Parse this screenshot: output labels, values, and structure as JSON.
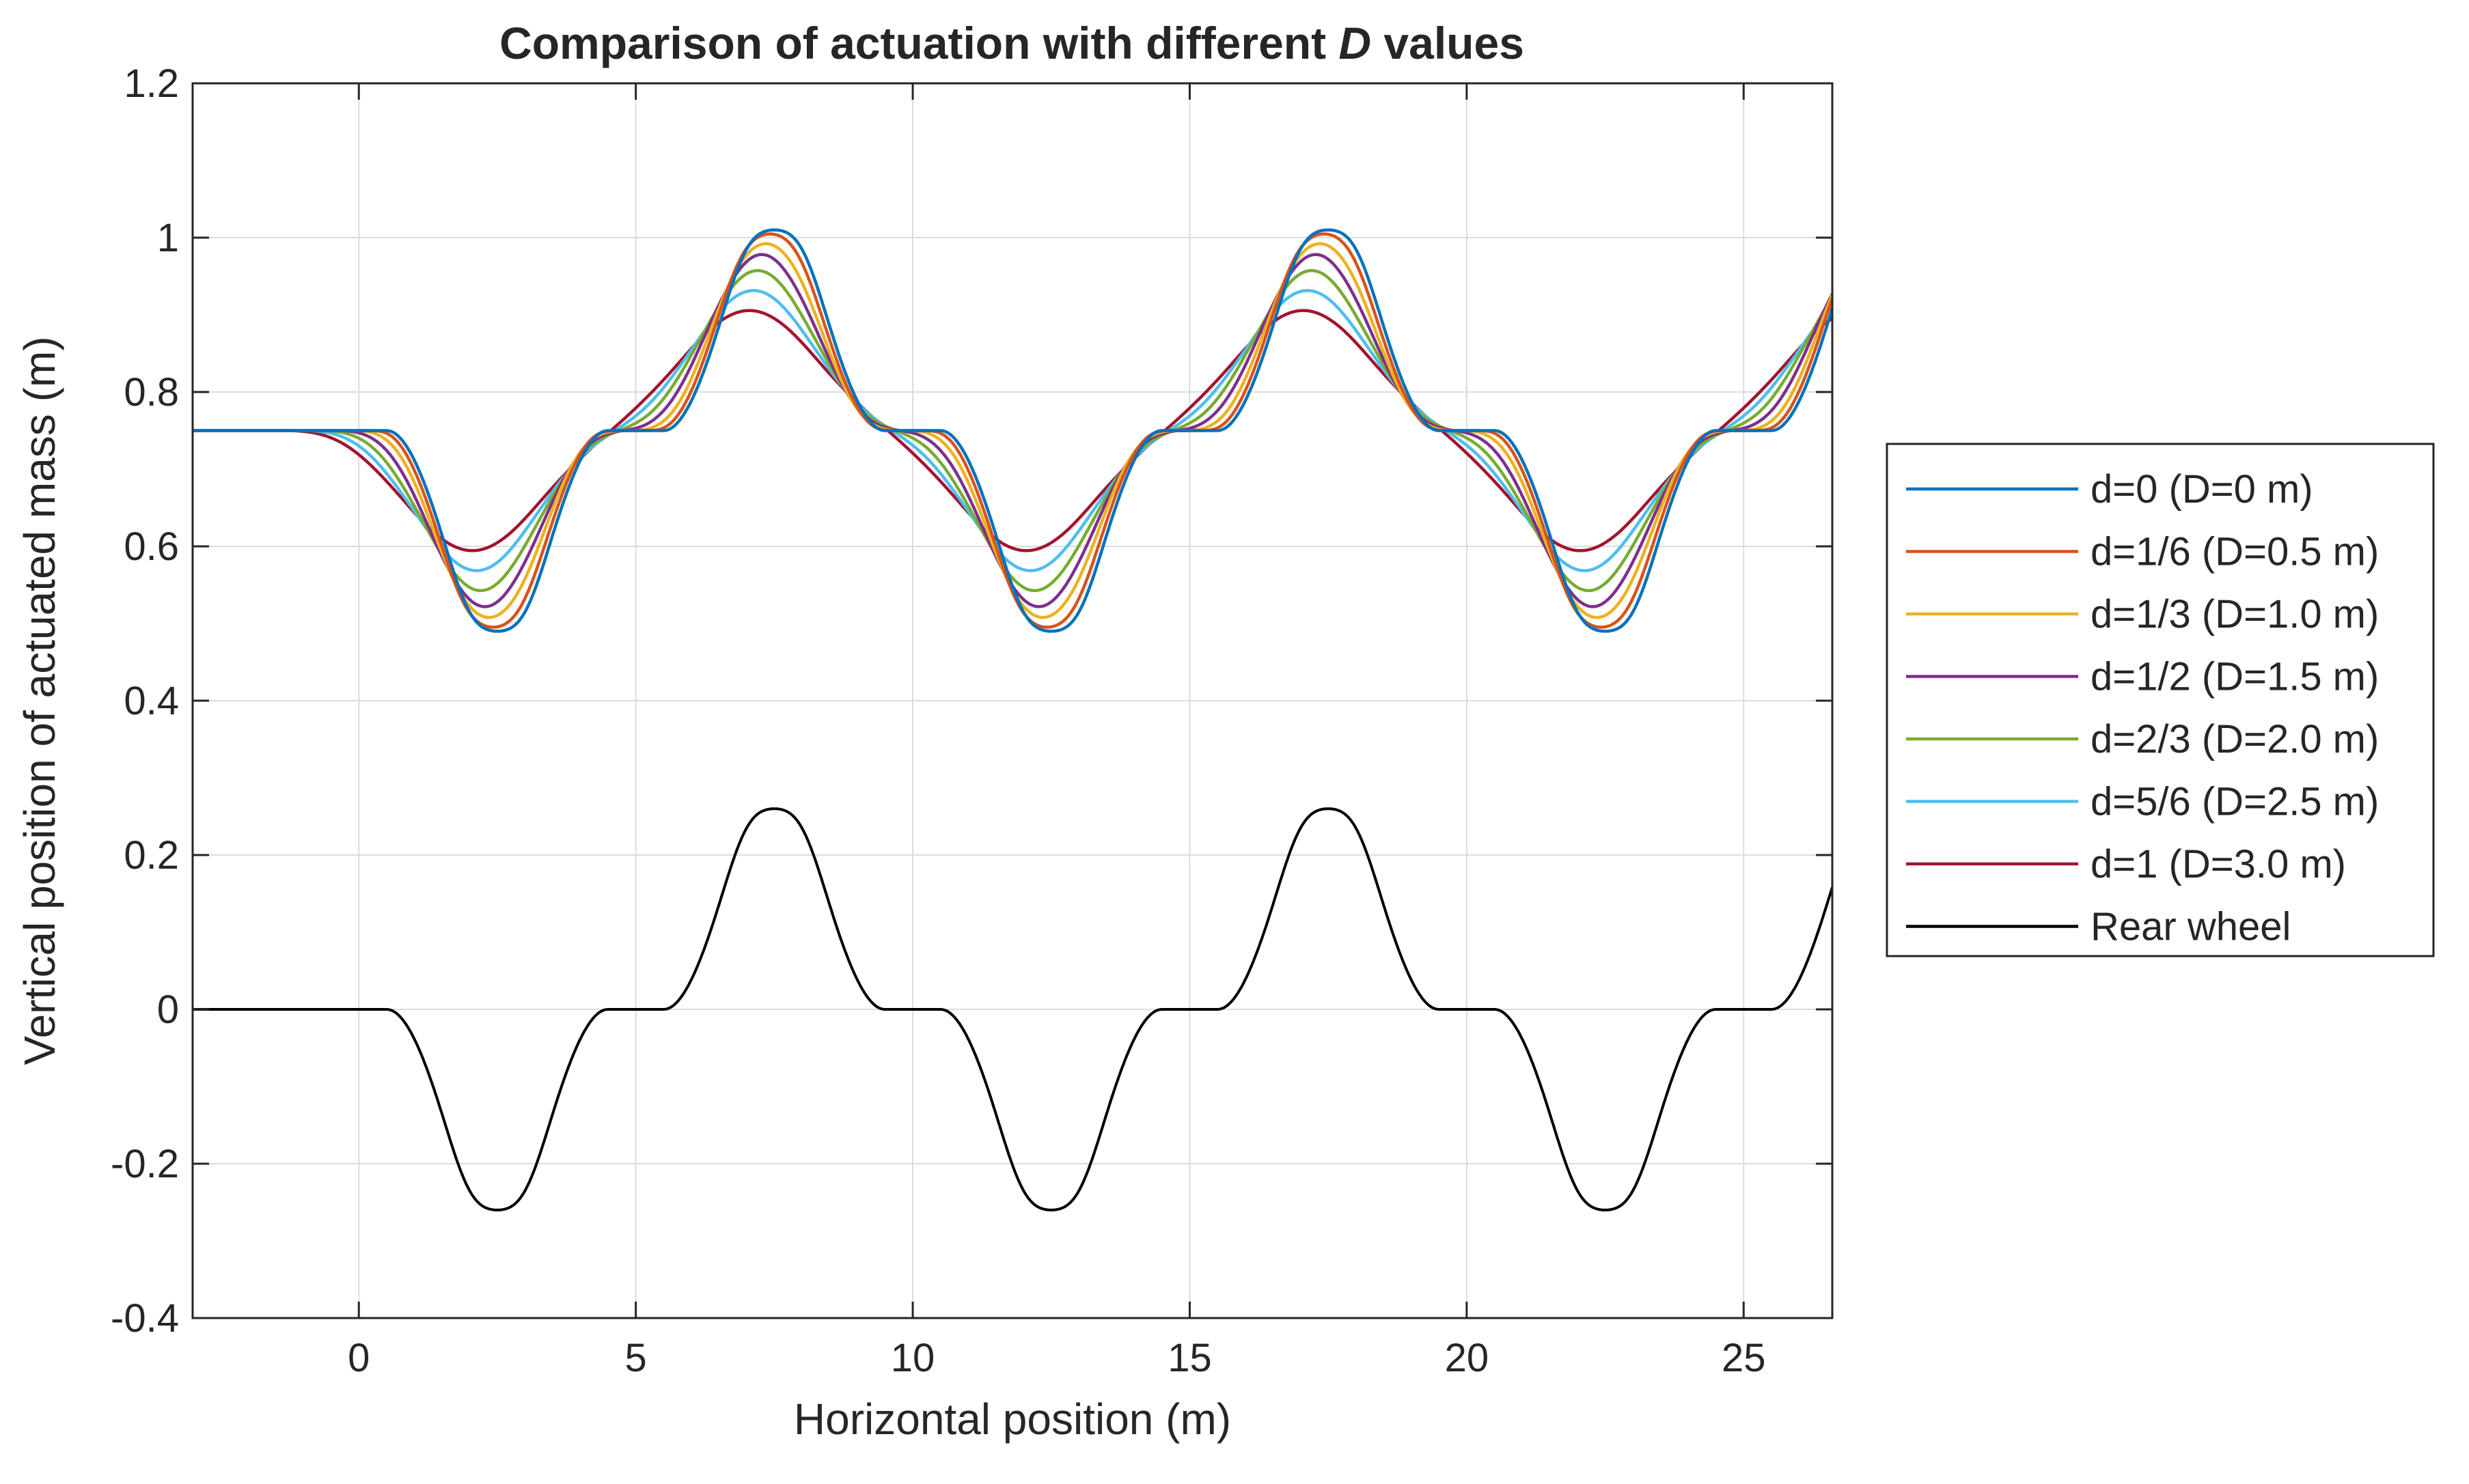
{
  "chart_data": {
    "type": "line",
    "title": {
      "prefix": "Comparison of actuation with different ",
      "emphasis": "D",
      "suffix": " values"
    },
    "xlabel": "Horizontal position (m)",
    "ylabel": "Vertical position of actuated mass (m)",
    "xlim": [
      -3,
      26.6
    ],
    "ylim": [
      -0.4,
      1.2
    ],
    "xticks": [
      0,
      5,
      10,
      15,
      20,
      25
    ],
    "xtick_labels": [
      "0",
      "5",
      "10",
      "15",
      "20",
      "25"
    ],
    "yticks": [
      -0.4,
      -0.2,
      0,
      0.2,
      0.4,
      0.6,
      0.8,
      1,
      1.2
    ],
    "ytick_labels": [
      "-0.4",
      "-0.2",
      "0",
      "0.2",
      "0.4",
      "0.6",
      "0.8",
      "1",
      "1.2"
    ],
    "grid": true,
    "legend_location": "outside-right",
    "road_profile": {
      "period_m": 10,
      "bump_start_m": 0,
      "bump_amplitude_m": 0.26,
      "dip_amplitude_m": 0.2,
      "baseline_mass_m": 0.75,
      "description": "rear wheel follows repeating bump-dip profile starting at x=0"
    },
    "series": [
      {
        "name": "d=0 (D=0 m)",
        "d": 0,
        "D_m": 0,
        "color": "#0072BD",
        "smoothing_window_m": 0.0,
        "gain": 1.0
      },
      {
        "name": "d=1/6 (D=0.5 m)",
        "d": 0.1667,
        "D_m": 0.5,
        "color": "#D95319",
        "smoothing_window_m": 0.5,
        "gain": 0.985
      },
      {
        "name": "d=1/3 (D=1.0 m)",
        "d": 0.3333,
        "D_m": 1.0,
        "color": "#EDB120",
        "smoothing_window_m": 1.0,
        "gain": 0.955
      },
      {
        "name": "d=1/2 (D=1.5 m)",
        "d": 0.5,
        "D_m": 1.5,
        "color": "#7E2F8E",
        "smoothing_window_m": 1.5,
        "gain": 0.94
      },
      {
        "name": "d=2/3 (D=2.0 m)",
        "d": 0.6667,
        "D_m": 2.0,
        "color": "#77AC30",
        "smoothing_window_m": 2.0,
        "gain": 0.915
      },
      {
        "name": "d=5/6 (D=2.5 m)",
        "d": 0.8333,
        "D_m": 2.5,
        "color": "#4DBEEE",
        "smoothing_window_m": 2.5,
        "gain": 0.875
      },
      {
        "name": "d=1 (D=3.0 m)",
        "d": 1,
        "D_m": 3.0,
        "color": "#A2142F",
        "smoothing_window_m": 3.0,
        "gain": 0.83
      },
      {
        "name": "Rear wheel",
        "color": "#000000",
        "smoothing_window_m": 0.0,
        "gain": 1.0
      }
    ]
  }
}
